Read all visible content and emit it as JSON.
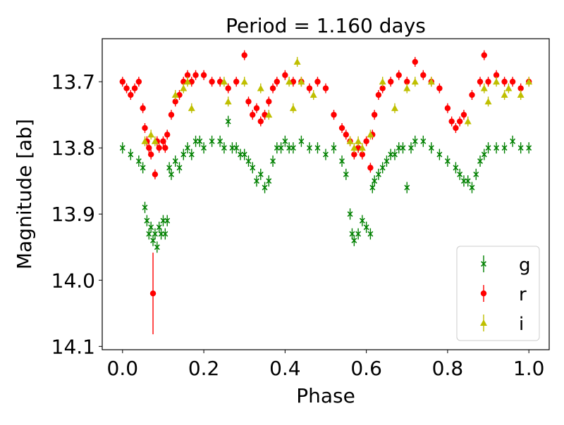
{
  "chart_data": {
    "type": "scatter",
    "title": "Period = 1.160 days",
    "xlabel": "Phase",
    "ylabel": "Magnitude [ab]",
    "xlim": [
      -0.05,
      1.05
    ],
    "ylim": [
      14.105,
      13.635
    ],
    "y_inverted": true,
    "grid": false,
    "legend_position": "lower-right",
    "xticks": [
      {
        "v": 0.0,
        "label": "0.0"
      },
      {
        "v": 0.2,
        "label": "0.2"
      },
      {
        "v": 0.4,
        "label": "0.4"
      },
      {
        "v": 0.6,
        "label": "0.6"
      },
      {
        "v": 0.8,
        "label": "0.8"
      },
      {
        "v": 1.0,
        "label": "1.0"
      }
    ],
    "yticks": [
      {
        "v": 13.7,
        "label": "13.7"
      },
      {
        "v": 13.8,
        "label": "13.8"
      },
      {
        "v": 13.9,
        "label": "13.9"
      },
      {
        "v": 14.0,
        "label": "14.0"
      },
      {
        "v": 14.1,
        "label": "14.1"
      }
    ],
    "series": [
      {
        "name": "g",
        "color": "#008000",
        "marker": "x",
        "points": [
          [
            0.0,
            13.8
          ],
          [
            0.02,
            13.81
          ],
          [
            0.04,
            13.82
          ],
          [
            0.05,
            13.83
          ],
          [
            0.055,
            13.89
          ],
          [
            0.06,
            13.91
          ],
          [
            0.065,
            13.93
          ],
          [
            0.07,
            13.92
          ],
          [
            0.075,
            13.94
          ],
          [
            0.08,
            13.93
          ],
          [
            0.085,
            13.95
          ],
          [
            0.09,
            13.92
          ],
          [
            0.095,
            13.93
          ],
          [
            0.1,
            13.91
          ],
          [
            0.105,
            13.93
          ],
          [
            0.11,
            13.91
          ],
          [
            0.115,
            13.83
          ],
          [
            0.12,
            13.84
          ],
          [
            0.13,
            13.82
          ],
          [
            0.14,
            13.83
          ],
          [
            0.15,
            13.81
          ],
          [
            0.16,
            13.8
          ],
          [
            0.17,
            13.81
          ],
          [
            0.18,
            13.79
          ],
          [
            0.19,
            13.79
          ],
          [
            0.2,
            13.8
          ],
          [
            0.22,
            13.79
          ],
          [
            0.24,
            13.79
          ],
          [
            0.25,
            13.8
          ],
          [
            0.26,
            13.76
          ],
          [
            0.27,
            13.8
          ],
          [
            0.28,
            13.8
          ],
          [
            0.29,
            13.81
          ],
          [
            0.3,
            13.81
          ],
          [
            0.31,
            13.82
          ],
          [
            0.32,
            13.83
          ],
          [
            0.33,
            13.85
          ],
          [
            0.34,
            13.84
          ],
          [
            0.35,
            13.86
          ],
          [
            0.36,
            13.85
          ],
          [
            0.37,
            13.82
          ],
          [
            0.38,
            13.8
          ],
          [
            0.39,
            13.8
          ],
          [
            0.4,
            13.79
          ],
          [
            0.41,
            13.8
          ],
          [
            0.42,
            13.8
          ],
          [
            0.44,
            13.79
          ],
          [
            0.46,
            13.8
          ],
          [
            0.48,
            13.8
          ],
          [
            0.5,
            13.81
          ],
          [
            0.52,
            13.8
          ],
          [
            0.54,
            13.82
          ],
          [
            0.55,
            13.84
          ],
          [
            0.56,
            13.9
          ],
          [
            0.565,
            13.93
          ],
          [
            0.57,
            13.94
          ],
          [
            0.58,
            13.93
          ],
          [
            0.59,
            13.91
          ],
          [
            0.6,
            13.92
          ],
          [
            0.61,
            13.93
          ],
          [
            0.615,
            13.86
          ],
          [
            0.62,
            13.85
          ],
          [
            0.63,
            13.84
          ],
          [
            0.64,
            13.83
          ],
          [
            0.65,
            13.82
          ],
          [
            0.66,
            13.81
          ],
          [
            0.67,
            13.81
          ],
          [
            0.68,
            13.8
          ],
          [
            0.69,
            13.8
          ],
          [
            0.7,
            13.86
          ],
          [
            0.71,
            13.8
          ],
          [
            0.72,
            13.79
          ],
          [
            0.74,
            13.79
          ],
          [
            0.76,
            13.8
          ],
          [
            0.78,
            13.81
          ],
          [
            0.8,
            13.82
          ],
          [
            0.82,
            13.83
          ],
          [
            0.83,
            13.84
          ],
          [
            0.84,
            13.85
          ],
          [
            0.85,
            13.85
          ],
          [
            0.86,
            13.86
          ],
          [
            0.87,
            13.84
          ],
          [
            0.88,
            13.82
          ],
          [
            0.89,
            13.81
          ],
          [
            0.9,
            13.8
          ],
          [
            0.92,
            13.8
          ],
          [
            0.94,
            13.8
          ],
          [
            0.96,
            13.79
          ],
          [
            0.98,
            13.8
          ],
          [
            1.0,
            13.8
          ]
        ]
      },
      {
        "name": "r",
        "color": "#ff0000",
        "marker": "o",
        "points": [
          [
            0.0,
            13.7
          ],
          [
            0.01,
            13.71
          ],
          [
            0.02,
            13.72
          ],
          [
            0.03,
            13.71
          ],
          [
            0.04,
            13.7
          ],
          [
            0.05,
            13.74
          ],
          [
            0.055,
            13.77
          ],
          [
            0.06,
            13.79
          ],
          [
            0.065,
            13.8
          ],
          [
            0.07,
            13.81
          ],
          [
            0.075,
            14.02
          ],
          [
            0.08,
            13.84
          ],
          [
            0.085,
            13.79
          ],
          [
            0.09,
            13.8
          ],
          [
            0.1,
            13.79
          ],
          [
            0.105,
            13.8
          ],
          [
            0.11,
            13.78
          ],
          [
            0.12,
            13.75
          ],
          [
            0.13,
            13.73
          ],
          [
            0.14,
            13.72
          ],
          [
            0.15,
            13.7
          ],
          [
            0.16,
            13.69
          ],
          [
            0.17,
            13.7
          ],
          [
            0.18,
            13.69
          ],
          [
            0.2,
            13.69
          ],
          [
            0.22,
            13.7
          ],
          [
            0.24,
            13.7
          ],
          [
            0.26,
            13.71
          ],
          [
            0.28,
            13.7
          ],
          [
            0.3,
            13.66
          ],
          [
            0.31,
            13.73
          ],
          [
            0.32,
            13.75
          ],
          [
            0.33,
            13.74
          ],
          [
            0.34,
            13.76
          ],
          [
            0.35,
            13.75
          ],
          [
            0.36,
            13.73
          ],
          [
            0.37,
            13.71
          ],
          [
            0.38,
            13.7
          ],
          [
            0.4,
            13.69
          ],
          [
            0.42,
            13.7
          ],
          [
            0.44,
            13.7
          ],
          [
            0.46,
            13.71
          ],
          [
            0.48,
            13.7
          ],
          [
            0.5,
            13.71
          ],
          [
            0.52,
            13.75
          ],
          [
            0.54,
            13.77
          ],
          [
            0.55,
            13.78
          ],
          [
            0.56,
            13.79
          ],
          [
            0.57,
            13.81
          ],
          [
            0.58,
            13.8
          ],
          [
            0.59,
            13.81
          ],
          [
            0.6,
            13.79
          ],
          [
            0.61,
            13.83
          ],
          [
            0.615,
            13.78
          ],
          [
            0.62,
            13.75
          ],
          [
            0.63,
            13.72
          ],
          [
            0.64,
            13.71
          ],
          [
            0.66,
            13.7
          ],
          [
            0.68,
            13.69
          ],
          [
            0.7,
            13.7
          ],
          [
            0.72,
            13.67
          ],
          [
            0.74,
            13.69
          ],
          [
            0.76,
            13.7
          ],
          [
            0.78,
            13.71
          ],
          [
            0.8,
            13.74
          ],
          [
            0.81,
            13.76
          ],
          [
            0.82,
            13.77
          ],
          [
            0.83,
            13.76
          ],
          [
            0.84,
            13.75
          ],
          [
            0.86,
            13.72
          ],
          [
            0.88,
            13.7
          ],
          [
            0.89,
            13.66
          ],
          [
            0.9,
            13.7
          ],
          [
            0.92,
            13.69
          ],
          [
            0.94,
            13.7
          ],
          [
            0.96,
            13.7
          ],
          [
            0.98,
            13.71
          ],
          [
            1.0,
            13.7
          ]
        ]
      },
      {
        "name": "i",
        "color": "#bfbf00",
        "marker": "^",
        "points": [
          [
            0.055,
            13.79
          ],
          [
            0.07,
            13.78
          ],
          [
            0.08,
            13.79
          ],
          [
            0.13,
            13.72
          ],
          [
            0.15,
            13.71
          ],
          [
            0.16,
            13.7
          ],
          [
            0.17,
            13.74
          ],
          [
            0.25,
            13.7
          ],
          [
            0.26,
            13.73
          ],
          [
            0.3,
            13.7
          ],
          [
            0.34,
            13.71
          ],
          [
            0.36,
            13.75
          ],
          [
            0.41,
            13.7
          ],
          [
            0.42,
            13.74
          ],
          [
            0.43,
            13.67
          ],
          [
            0.44,
            13.7
          ],
          [
            0.47,
            13.72
          ],
          [
            0.56,
            13.79
          ],
          [
            0.57,
            13.8
          ],
          [
            0.58,
            13.79
          ],
          [
            0.59,
            13.8
          ],
          [
            0.61,
            13.78
          ],
          [
            0.64,
            13.7
          ],
          [
            0.67,
            13.74
          ],
          [
            0.7,
            13.71
          ],
          [
            0.72,
            13.7
          ],
          [
            0.76,
            13.7
          ],
          [
            0.85,
            13.76
          ],
          [
            0.89,
            13.71
          ],
          [
            0.9,
            13.73
          ],
          [
            0.92,
            13.7
          ],
          [
            0.94,
            13.72
          ],
          [
            0.95,
            13.71
          ],
          [
            0.98,
            13.72
          ],
          [
            1.0,
            13.7
          ]
        ]
      }
    ]
  }
}
